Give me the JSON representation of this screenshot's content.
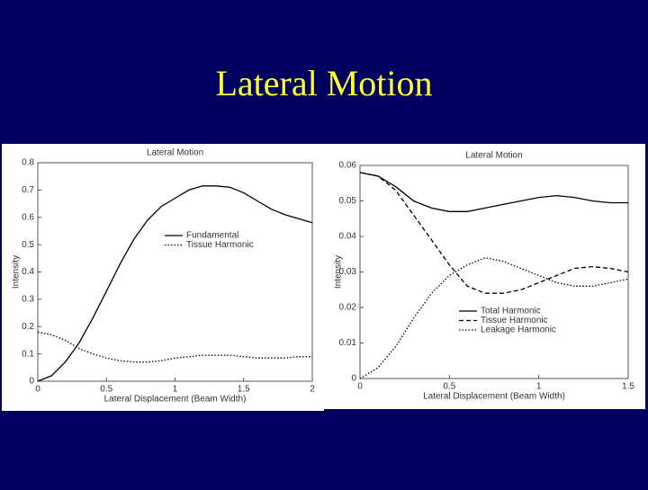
{
  "slide_title": "Lateral Motion",
  "chart_data": [
    {
      "type": "line",
      "title": "Lateral Motion",
      "x_label": "Lateral Displacement (Beam Width)",
      "y_label": "Intensity",
      "x": [
        0,
        0.1,
        0.2,
        0.3,
        0.4,
        0.5,
        0.6,
        0.7,
        0.8,
        0.9,
        1.0,
        1.1,
        1.2,
        1.3,
        1.4,
        1.5,
        1.6,
        1.7,
        1.8,
        1.9,
        2.0
      ],
      "series": [
        {
          "name": "Fundamental",
          "color": "#000000",
          "style": "solid",
          "values": [
            0.0,
            0.02,
            0.07,
            0.14,
            0.23,
            0.33,
            0.43,
            0.52,
            0.59,
            0.64,
            0.67,
            0.7,
            0.715,
            0.715,
            0.71,
            0.69,
            0.66,
            0.63,
            0.61,
            0.595,
            0.58
          ]
        },
        {
          "name": "Tissue Harmonic",
          "color": "#000000",
          "style": "dotted",
          "values": [
            0.18,
            0.17,
            0.15,
            0.12,
            0.1,
            0.085,
            0.075,
            0.07,
            0.07,
            0.075,
            0.085,
            0.09,
            0.095,
            0.095,
            0.095,
            0.09,
            0.085,
            0.085,
            0.085,
            0.09,
            0.09
          ]
        }
      ],
      "xlim": [
        0,
        2
      ],
      "ylim": [
        0,
        0.8
      ],
      "xticks": [
        0,
        0.5,
        1,
        1.5,
        2
      ],
      "yticks": [
        0,
        0.1,
        0.2,
        0.3,
        0.4,
        0.5,
        0.6,
        0.7,
        0.8
      ]
    },
    {
      "type": "line",
      "title": "Lateral Motion",
      "x_label": "Lateral Displacement (Beam Width)",
      "y_label": "Intensity",
      "x": [
        0,
        0.1,
        0.2,
        0.3,
        0.4,
        0.5,
        0.6,
        0.7,
        0.8,
        0.9,
        1.0,
        1.1,
        1.2,
        1.3,
        1.4,
        1.5
      ],
      "series": [
        {
          "name": "Total Harmonic",
          "color": "#000000",
          "style": "solid",
          "values": [
            0.058,
            0.057,
            0.054,
            0.05,
            0.048,
            0.047,
            0.047,
            0.048,
            0.049,
            0.05,
            0.051,
            0.0515,
            0.051,
            0.05,
            0.0495,
            0.0495
          ]
        },
        {
          "name": "Tissue Harmonic",
          "color": "#000000",
          "style": "dashed",
          "values": [
            0.058,
            0.057,
            0.053,
            0.046,
            0.039,
            0.032,
            0.026,
            0.024,
            0.024,
            0.025,
            0.027,
            0.029,
            0.031,
            0.0315,
            0.031,
            0.03
          ]
        },
        {
          "name": "Leakage Harmonic",
          "color": "#000000",
          "style": "dotted",
          "values": [
            0,
            0.003,
            0.009,
            0.017,
            0.024,
            0.029,
            0.032,
            0.034,
            0.033,
            0.031,
            0.029,
            0.027,
            0.026,
            0.026,
            0.027,
            0.028
          ]
        }
      ],
      "xlim": [
        0,
        1.5
      ],
      "ylim": [
        0,
        0.06
      ],
      "xticks": [
        0,
        0.5,
        1,
        1.5
      ],
      "yticks": [
        0,
        0.01,
        0.02,
        0.03,
        0.04,
        0.05,
        0.06
      ]
    }
  ]
}
